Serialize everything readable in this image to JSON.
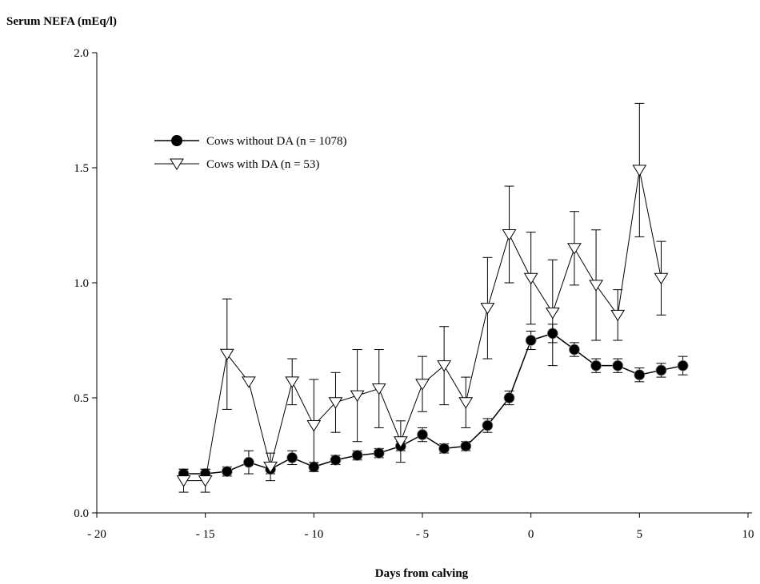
{
  "chart_data": {
    "type": "line",
    "ylabel": "Serum NEFA (mEq/l)",
    "xlabel": "Days from calving",
    "xlim": [
      -20,
      10
    ],
    "ylim": [
      0,
      2
    ],
    "grid": false,
    "legend_position": "top-left",
    "x_ticks": [
      -20,
      -15,
      -10,
      -5,
      0,
      5,
      10
    ],
    "x_tick_labels": [
      "- 20",
      "- 15",
      "- 10",
      "- 5",
      "0",
      "5",
      "10"
    ],
    "y_ticks": [
      0,
      0.5,
      1,
      1.5,
      2
    ],
    "y_tick_labels": [
      "0.0",
      "0.5",
      "1.0",
      "1.5",
      "2.0"
    ],
    "series": [
      {
        "name": "Cows without DA (n = 1078)",
        "marker": "filled-circle",
        "color": "#000000",
        "x": [
          -16,
          -15,
          -14,
          -13,
          -12,
          -11,
          -10,
          -9,
          -8,
          -7,
          -6,
          -5,
          -4,
          -3,
          -2,
          -1,
          0,
          1,
          2,
          3,
          4,
          5,
          6,
          7
        ],
        "y": [
          0.17,
          0.17,
          0.18,
          0.22,
          0.19,
          0.24,
          0.2,
          0.23,
          0.25,
          0.26,
          0.29,
          0.34,
          0.28,
          0.29,
          0.38,
          0.5,
          0.75,
          0.78,
          0.71,
          0.64,
          0.64,
          0.6,
          0.62,
          0.64
        ],
        "err": [
          0.02,
          0.02,
          0.02,
          0.05,
          0.02,
          0.03,
          0.02,
          0.02,
          0.02,
          0.02,
          0.02,
          0.03,
          0.02,
          0.02,
          0.03,
          0.03,
          0.04,
          0.04,
          0.03,
          0.03,
          0.03,
          0.03,
          0.03,
          0.04
        ]
      },
      {
        "name": "Cows with DA (n = 53)",
        "marker": "open-triangle-down",
        "color": "#000000",
        "x": [
          -16,
          -15,
          -14,
          -13,
          -12,
          -11,
          -10,
          -9,
          -8,
          -7,
          -6,
          -5,
          -4,
          -3,
          -2,
          -1,
          0,
          1,
          2,
          3,
          4,
          5,
          6
        ],
        "y": [
          0.14,
          0.14,
          0.69,
          0.57,
          0.2,
          0.57,
          0.38,
          0.48,
          0.51,
          0.54,
          0.31,
          0.56,
          0.64,
          0.48,
          0.89,
          1.21,
          1.02,
          0.87,
          1.15,
          0.99,
          0.86,
          1.49,
          1.02
        ],
        "err": [
          0.05,
          0.05,
          0.24,
          0.0,
          0.06,
          0.1,
          0.2,
          0.13,
          0.2,
          0.17,
          0.09,
          0.12,
          0.17,
          0.11,
          0.22,
          0.21,
          0.2,
          0.23,
          0.16,
          0.24,
          0.11,
          0.29,
          0.16
        ]
      }
    ]
  }
}
